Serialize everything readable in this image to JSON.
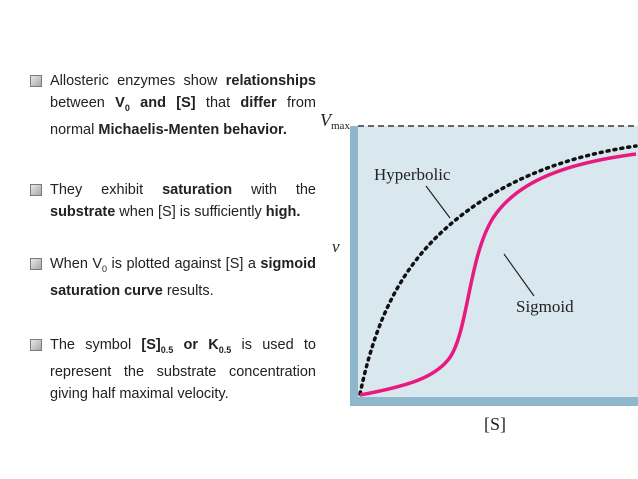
{
  "bullets": [
    {
      "parts": [
        {
          "t": "Allosteric enzymes show ",
          "b": false
        },
        {
          "t": "relationships",
          "b": true
        },
        {
          "t": " between ",
          "b": false
        },
        {
          "t": "V",
          "b": true
        },
        {
          "t": "0",
          "b": true,
          "sub": true
        },
        {
          "t": " and [S]",
          "b": true
        },
        {
          "t": " that ",
          "b": false
        },
        {
          "t": "differ",
          "b": true
        },
        {
          "t": " from normal ",
          "b": false
        },
        {
          "t": "Michaelis-Menten behavior.",
          "b": true
        }
      ]
    },
    {
      "parts": [
        {
          "t": "They exhibit ",
          "b": false
        },
        {
          "t": "saturation",
          "b": true
        },
        {
          "t": " with the ",
          "b": false
        },
        {
          "t": "substrate",
          "b": true
        },
        {
          "t": " when [S] is sufficiently ",
          "b": false
        },
        {
          "t": "high.",
          "b": true
        }
      ]
    },
    {
      "parts": [
        {
          "t": "When V",
          "b": false
        },
        {
          "t": "0",
          "b": false,
          "sub": true
        },
        {
          "t": " is plotted against [S] a ",
          "b": false
        },
        {
          "t": "sigmoid saturation curve",
          "b": true
        },
        {
          "t": " results.",
          "b": false
        }
      ]
    },
    {
      "parts": [
        {
          "t": "The symbol ",
          "b": false
        },
        {
          "t": "[S]",
          "b": true
        },
        {
          "t": "0.5",
          "b": true,
          "sub": true
        },
        {
          "t": " or K",
          "b": true
        },
        {
          "t": "0.5",
          "b": true,
          "sub": true
        },
        {
          "t": " is used to represent the substrate concentration giving half maximal velocity.",
          "b": false
        }
      ]
    }
  ],
  "figure": {
    "vmax_label": "V",
    "vmax_sub": "max",
    "y_label": "v",
    "x_label": "[S]",
    "hyperbolic_label": "Hyperbolic",
    "sigmoid_label": "Sigmoid",
    "colors": {
      "panel": "#d9e7ef",
      "axis": "#8fb7cb",
      "sigmoid": "#e8197f",
      "hyperbolic": "#111111",
      "vmax_line": "#666666"
    }
  }
}
